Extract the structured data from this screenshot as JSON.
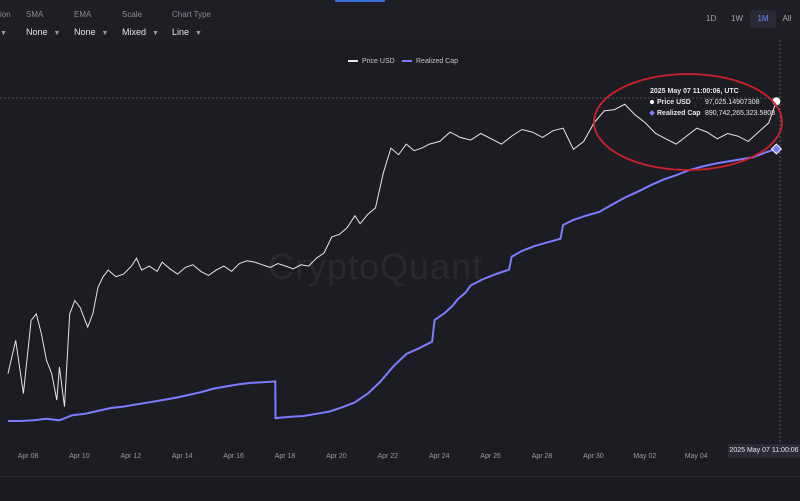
{
  "toolbar": {
    "controls": [
      {
        "label": "ion",
        "value": ""
      },
      {
        "label": "SMA",
        "value": "None"
      },
      {
        "label": "EMA",
        "value": "None"
      },
      {
        "label": "Scale",
        "value": "Mixed"
      },
      {
        "label": "Chart Type",
        "value": "Line"
      }
    ],
    "ranges": [
      "1D",
      "1W",
      "1M",
      "All"
    ],
    "active_range": "1M"
  },
  "watermark": "CryptoQuant",
  "tooltip": {
    "timestamp": "2025 May 07 11:00:06, UTC",
    "price_label": "Price USD",
    "price_value": "97,025.14907308",
    "cap_label": "Realized Cap",
    "cap_value": "890,742,265,323.5808"
  },
  "crosshair_date_label": "2025 May 07 11:00:06",
  "colors": {
    "price": "#e6e6e6",
    "realized_cap": "#7b7cff",
    "annotation": "#d0202a",
    "background": "#1c1c23"
  },
  "chart_data": {
    "type": "line",
    "title": "",
    "xlabel": "",
    "ylabel": "",
    "x_tick_labels": [
      "Apr 08",
      "Apr 10",
      "Apr 12",
      "Apr 14",
      "Apr 16",
      "Apr 18",
      "Apr 20",
      "Apr 22",
      "Apr 24",
      "Apr 26",
      "Apr 28",
      "Apr 30",
      "May 02",
      "May 04"
    ],
    "legend_position": "top-center",
    "grid": false,
    "x_unit": "days since Apr 07",
    "series": [
      {
        "name": "Price USD",
        "x": [
          0,
          0.3,
          0.6,
          0.9,
          1.1,
          1.3,
          1.5,
          1.7,
          1.9,
          2.0,
          2.2,
          2.4,
          2.6,
          2.8,
          3.1,
          3.3,
          3.5,
          3.7,
          3.9,
          4.2,
          4.5,
          4.8,
          5.0,
          5.2,
          5.5,
          5.8,
          6.0,
          6.3,
          6.6,
          6.9,
          7.2,
          7.5,
          7.8,
          8.1,
          8.4,
          8.7,
          9.0,
          9.3,
          9.6,
          9.9,
          10.2,
          10.5,
          10.8,
          11.1,
          11.4,
          11.7,
          12.0,
          12.3,
          12.6,
          12.9,
          13.2,
          13.5,
          13.7,
          14.0,
          14.3,
          14.6,
          14.9,
          15.2,
          15.5,
          15.8,
          16.1,
          16.4,
          16.8,
          17.2,
          17.6,
          18.0,
          18.4,
          18.8,
          19.2,
          19.6,
          20.0,
          20.4,
          20.8,
          21.2,
          21.6,
          22.0,
          22.4,
          22.8,
          23.2,
          23.6,
          24.0,
          24.4,
          24.8,
          25.2,
          25.6,
          26.0,
          26.4,
          26.8,
          27.2,
          27.6,
          28.0,
          28.4,
          28.8,
          29.2,
          29.6,
          29.9
        ],
        "y": [
          76500,
          79000,
          75000,
          80500,
          81000,
          79500,
          77500,
          76500,
          74500,
          77000,
          74000,
          81000,
          82000,
          81500,
          80000,
          81000,
          83000,
          83800,
          84300,
          83800,
          84000,
          84600,
          85200,
          84300,
          84600,
          84200,
          84900,
          84400,
          84000,
          84500,
          84700,
          84200,
          83900,
          84300,
          84600,
          84200,
          84800,
          85000,
          84900,
          84700,
          84500,
          84800,
          84600,
          84400,
          84700,
          84600,
          85200,
          85600,
          86800,
          87000,
          87500,
          88400,
          87800,
          88500,
          89000,
          91600,
          93500,
          93000,
          93800,
          93300,
          93500,
          93800,
          94000,
          94700,
          94300,
          94100,
          94600,
          94200,
          93800,
          94400,
          94900,
          94700,
          94300,
          94800,
          95000,
          93400,
          94000,
          95400,
          96300,
          96400,
          96800,
          96000,
          95400,
          94600,
          94200,
          93800,
          94400,
          95000,
          94700,
          94200,
          94600,
          94400,
          94000,
          94700,
          95400,
          97025
        ]
      },
      {
        "name": "Realized Cap",
        "x": [
          0,
          0.5,
          1.0,
          1.5,
          2.0,
          2.5,
          3.0,
          3.5,
          4.0,
          4.5,
          5.0,
          5.5,
          6.0,
          6.5,
          7.0,
          7.5,
          8.0,
          8.5,
          9.0,
          9.5,
          10.0,
          10.4,
          10.41,
          11.0,
          11.5,
          12.0,
          12.5,
          13.0,
          13.5,
          14.0,
          14.5,
          15.0,
          15.5,
          16.0,
          16.5,
          16.6,
          17.0,
          17.3,
          17.5,
          17.8,
          18.0,
          18.5,
          19.0,
          19.5,
          19.6,
          20.0,
          20.5,
          21.0,
          21.5,
          21.6,
          22.0,
          22.5,
          23.0,
          23.5,
          24.0,
          24.5,
          25.0,
          25.5,
          26.0,
          26.5,
          27.0,
          27.5,
          28.0,
          28.5,
          29.0,
          29.5,
          29.9
        ],
        "y": [
          853.0,
          853.0,
          853.1,
          853.3,
          853.1,
          853.8,
          854.0,
          854.4,
          854.8,
          855.0,
          855.3,
          855.6,
          855.9,
          856.2,
          856.6,
          857.0,
          857.5,
          857.8,
          858.1,
          858.3,
          858.4,
          858.5,
          853.4,
          853.6,
          853.7,
          854.0,
          854.3,
          854.9,
          855.6,
          856.8,
          858.5,
          860.6,
          862.3,
          863.1,
          864.0,
          867.0,
          868.0,
          869.0,
          869.9,
          870.8,
          871.8,
          872.7,
          873.4,
          874.0,
          875.8,
          876.6,
          877.3,
          877.8,
          878.3,
          880.2,
          880.9,
          881.5,
          882.0,
          883.0,
          884.0,
          884.8,
          885.7,
          886.5,
          887.1,
          887.8,
          888.3,
          888.7,
          889.0,
          889.3,
          889.6,
          890.3,
          890.74
        ]
      }
    ]
  }
}
